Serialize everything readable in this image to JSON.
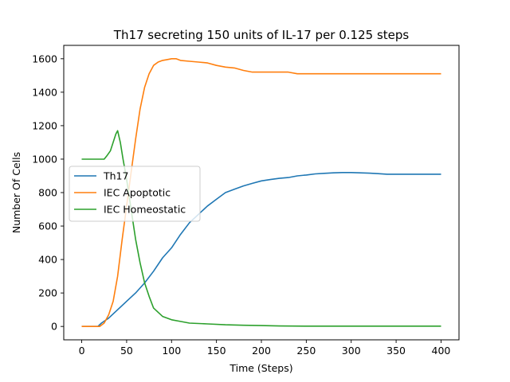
{
  "chart_data": {
    "type": "line",
    "title": "Th17 secreting 150 units of IL-17 per 0.125 steps",
    "xlabel": "Time (Steps)",
    "ylabel": "Number Of Cells",
    "xlim": [
      -20,
      420
    ],
    "ylim": [
      -80,
      1680
    ],
    "xticks": [
      0,
      50,
      100,
      150,
      200,
      250,
      300,
      350,
      400
    ],
    "yticks": [
      0,
      200,
      400,
      600,
      800,
      1000,
      1200,
      1400,
      1600
    ],
    "grid": false,
    "legend_position": "center-left",
    "series": [
      {
        "name": "Th17",
        "color": "#1f77b4",
        "x": [
          0,
          18,
          22,
          30,
          40,
          50,
          60,
          70,
          80,
          90,
          100,
          110,
          120,
          130,
          140,
          150,
          160,
          170,
          180,
          190,
          200,
          210,
          220,
          230,
          240,
          250,
          260,
          270,
          280,
          290,
          300,
          310,
          320,
          330,
          340,
          350,
          360,
          370,
          380,
          390,
          400
        ],
        "y": [
          0,
          0,
          20,
          50,
          100,
          150,
          200,
          260,
          330,
          410,
          470,
          550,
          620,
          670,
          720,
          760,
          800,
          820,
          840,
          855,
          870,
          878,
          885,
          890,
          900,
          905,
          912,
          915,
          918,
          920,
          920,
          918,
          916,
          913,
          910,
          910,
          910,
          910,
          910,
          910,
          910
        ]
      },
      {
        "name": "IEC Apoptotic",
        "color": "#ff7f0e",
        "x": [
          0,
          20,
          25,
          30,
          35,
          40,
          45,
          50,
          55,
          60,
          65,
          70,
          75,
          80,
          85,
          90,
          95,
          100,
          105,
          110,
          120,
          130,
          140,
          150,
          160,
          170,
          180,
          190,
          200,
          210,
          220,
          230,
          240,
          250,
          300,
          350,
          400
        ],
        "y": [
          0,
          0,
          20,
          70,
          150,
          300,
          520,
          720,
          920,
          1120,
          1300,
          1430,
          1510,
          1560,
          1580,
          1590,
          1595,
          1600,
          1600,
          1590,
          1585,
          1580,
          1575,
          1560,
          1550,
          1545,
          1530,
          1520,
          1520,
          1520,
          1520,
          1520,
          1510,
          1510,
          1510,
          1510,
          1510
        ]
      },
      {
        "name": "IEC Homeostatic",
        "color": "#2ca02c",
        "x": [
          0,
          25,
          28,
          32,
          35,
          38,
          40,
          43,
          46,
          50,
          55,
          60,
          65,
          70,
          75,
          80,
          90,
          100,
          110,
          120,
          140,
          160,
          180,
          200,
          220,
          250,
          300,
          350,
          400
        ],
        "y": [
          1000,
          1000,
          1020,
          1050,
          1100,
          1150,
          1170,
          1100,
          1000,
          880,
          700,
          520,
          380,
          260,
          180,
          110,
          60,
          40,
          30,
          20,
          15,
          10,
          7,
          5,
          3,
          2,
          2,
          2,
          2
        ]
      }
    ]
  }
}
